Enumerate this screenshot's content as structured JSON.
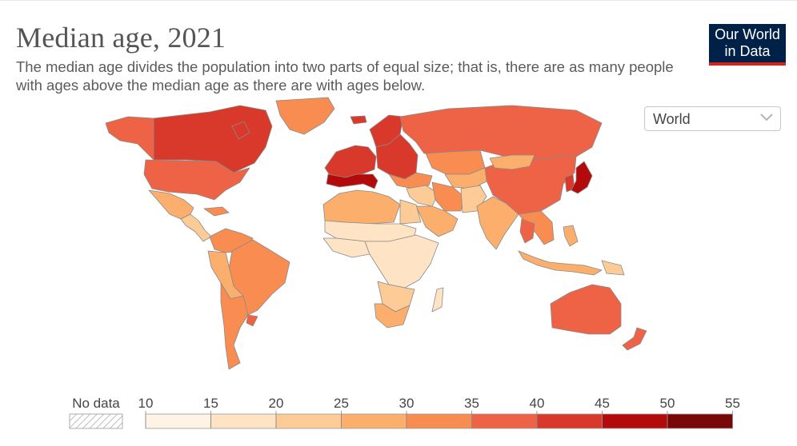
{
  "title": "Median age, 2021",
  "subtitle": "The median age divides the population into two parts of equal size; that is, there are as many people with ages above the median age as there are with ages below.",
  "logo": {
    "line1": "Our World",
    "line2": "in Data"
  },
  "region_select": {
    "value": "World"
  },
  "colors": {
    "bin_colors": [
      "#fff3e6",
      "#fee4c5",
      "#fdcb95",
      "#fcae6c",
      "#f88c51",
      "#ee6346",
      "#d8392b",
      "#b30b0b",
      "#7a0707"
    ],
    "no_data": "#eeeeee",
    "border": "#8a8a8a",
    "ocean": "#ffffff"
  },
  "legend": {
    "no_data_label": "No data",
    "bins": [
      10,
      15,
      20,
      25,
      30,
      35,
      40,
      45,
      50,
      55
    ],
    "tick_labels": [
      "10",
      "15",
      "20",
      "25",
      "30",
      "35",
      "40",
      "45",
      "50",
      "55"
    ]
  },
  "chart_data": {
    "type": "choropleth",
    "variable": "Median age",
    "year": 2021,
    "region_values": [
      {
        "region": "Greenland",
        "value": 34
      },
      {
        "region": "Canada",
        "value": 41
      },
      {
        "region": "Alaska (United States)",
        "value": 38
      },
      {
        "region": "United States",
        "value": 38
      },
      {
        "region": "Mexico",
        "value": 29
      },
      {
        "region": "Central America",
        "value": 24
      },
      {
        "region": "Caribbean",
        "value": 31
      },
      {
        "region": "Colombia / Venezuela",
        "value": 30
      },
      {
        "region": "Brazil",
        "value": 33
      },
      {
        "region": "Andean (Peru, Bolivia)",
        "value": 27
      },
      {
        "region": "Argentina / Chile",
        "value": 32
      },
      {
        "region": "Uruguay",
        "value": 35
      },
      {
        "region": "Iceland / Scandinavia",
        "value": 40
      },
      {
        "region": "Western Europe",
        "value": 42
      },
      {
        "region": "Southern Europe",
        "value": 45
      },
      {
        "region": "Eastern Europe",
        "value": 41
      },
      {
        "region": "Russia",
        "value": 39
      },
      {
        "region": "Kazakhstan",
        "value": 30
      },
      {
        "region": "Central Asia",
        "value": 27
      },
      {
        "region": "Turkey / Caucasus",
        "value": 32
      },
      {
        "region": "Middle East",
        "value": 24
      },
      {
        "region": "Arabian Peninsula",
        "value": 28
      },
      {
        "region": "Iran",
        "value": 32
      },
      {
        "region": "Afghanistan / Pakistan",
        "value": 20
      },
      {
        "region": "India",
        "value": 28
      },
      {
        "region": "China",
        "value": 38
      },
      {
        "region": "Mongolia",
        "value": 28
      },
      {
        "region": "Korea",
        "value": 43
      },
      {
        "region": "Japan",
        "value": 48
      },
      {
        "region": "Southeast Asia mainland",
        "value": 32
      },
      {
        "region": "Thailand",
        "value": 39
      },
      {
        "region": "Indonesia",
        "value": 29
      },
      {
        "region": "Philippines",
        "value": 25
      },
      {
        "region": "Papua New Guinea",
        "value": 22
      },
      {
        "region": "Australia",
        "value": 38
      },
      {
        "region": "New Zealand",
        "value": 37
      },
      {
        "region": "North Africa",
        "value": 27
      },
      {
        "region": "Egypt",
        "value": 24
      },
      {
        "region": "Sahel",
        "value": 16
      },
      {
        "region": "West Africa",
        "value": 18
      },
      {
        "region": "Central / East Africa",
        "value": 17
      },
      {
        "region": "Southern Africa",
        "value": 21
      },
      {
        "region": "South Africa",
        "value": 27
      },
      {
        "region": "Madagascar",
        "value": 19
      }
    ]
  }
}
